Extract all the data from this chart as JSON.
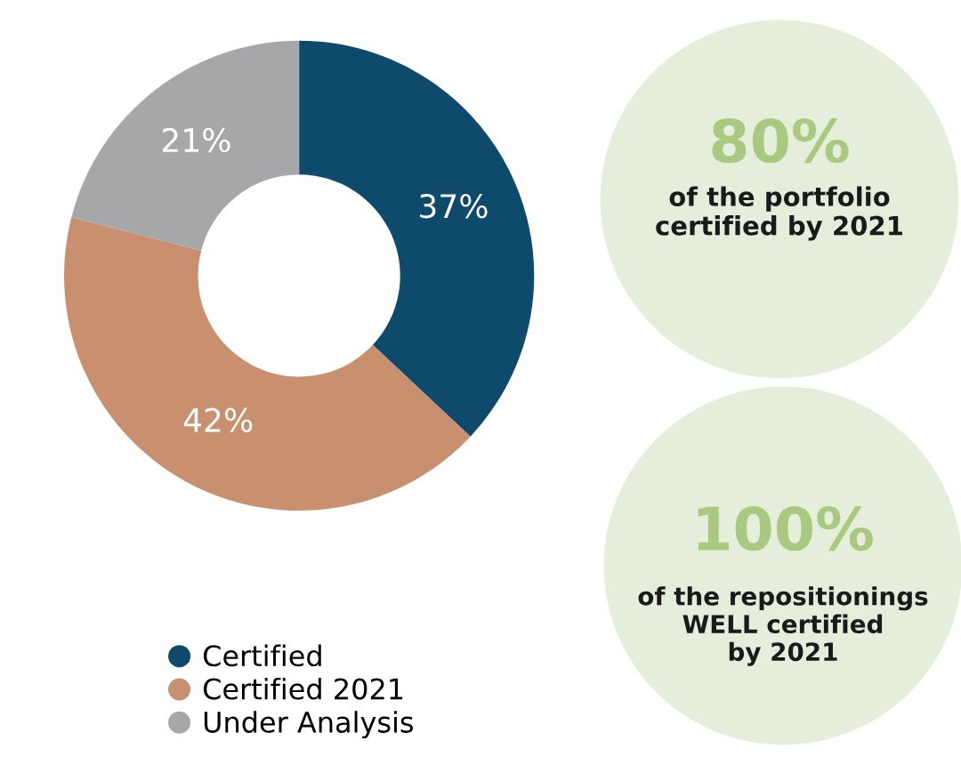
{
  "chart_data": {
    "type": "donut",
    "categories": [
      "Certified",
      "Certified 2021",
      "Under Analysis"
    ],
    "values": [
      37,
      42,
      21
    ],
    "colors": [
      "#0e4a6b",
      "#c8906e",
      "#a5a7a8"
    ],
    "value_labels": [
      "37%",
      "42%",
      "21%"
    ],
    "legend": "bottom left",
    "annotations": [
      "80%",
      "of the portfolio\ncertified by 2021",
      "100%",
      "of the repositionings\nWELL certified\nby 2021"
    ]
  }
}
